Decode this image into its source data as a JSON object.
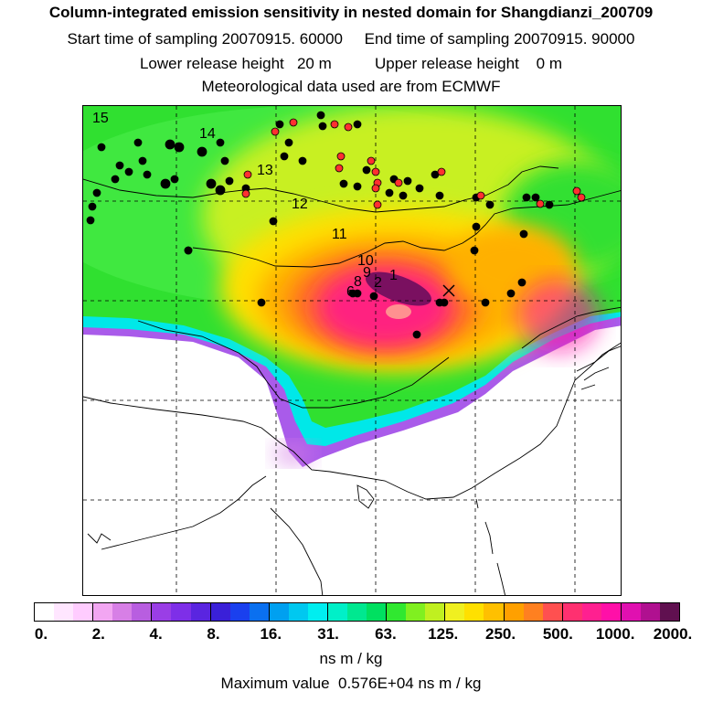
{
  "header": {
    "title": "Column-integrated emission sensitivity in nested domain for Shangdianzi_200709",
    "line2": "Start time of sampling 20070915. 60000     End time of sampling 20070915. 90000",
    "line3": "Lower release height   20 m          Upper release height    0 m",
    "line4": "Meteorological data used are from ECMWF"
  },
  "map": {
    "labels": [
      "15",
      "14",
      "13",
      "12",
      "11",
      "10",
      "9",
      "8",
      "6",
      "1",
      "2"
    ],
    "receptor_marker": "x-mark"
  },
  "colorbar": {
    "colors": [
      "#ffffff",
      "#ffe6ff",
      "#ffccff",
      "#f2a6f2",
      "#d77fe6",
      "#b85ee0",
      "#9a3ee6",
      "#7e2fe8",
      "#5a25e0",
      "#3a20d8",
      "#1a40ee",
      "#0a70f0",
      "#00a0f0",
      "#00c8f0",
      "#00eef0",
      "#00f0c8",
      "#00e890",
      "#00e060",
      "#30e830",
      "#80f020",
      "#c0f020",
      "#f0f020",
      "#ffe000",
      "#ffc000",
      "#ffa000",
      "#ff8020",
      "#ff5050",
      "#ff3070",
      "#ff2090",
      "#ff10a8",
      "#e010b0",
      "#b01090",
      "#601050"
    ],
    "tick_labels": [
      "0.",
      "2.",
      "4.",
      "8.",
      "16.",
      "31.",
      "63.",
      "125.",
      "250.",
      "500.",
      "1000.",
      "2000."
    ],
    "unit": "ns m / kg"
  },
  "footer": {
    "max_value": "Maximum value  0.576E+04 ns m / kg"
  }
}
